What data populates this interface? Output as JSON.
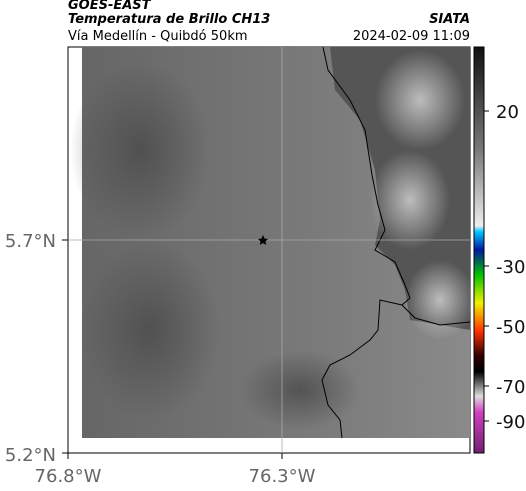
{
  "header": {
    "source": "GOES-EAST",
    "product": "Temperatura de Brillo CH13",
    "organization": "SIATA",
    "route": "Vía Medellín - Quibdó 50km",
    "timestamp": "2024-02-09 11:09"
  },
  "map": {
    "lat_labels": [
      "5.7°N",
      "5.2°N"
    ],
    "lon_labels": [
      "76.8°W",
      "76.3°W"
    ]
  },
  "colorbar": {
    "tick_labels": [
      "20",
      "-30",
      "-50",
      "-70",
      "-90"
    ]
  }
}
